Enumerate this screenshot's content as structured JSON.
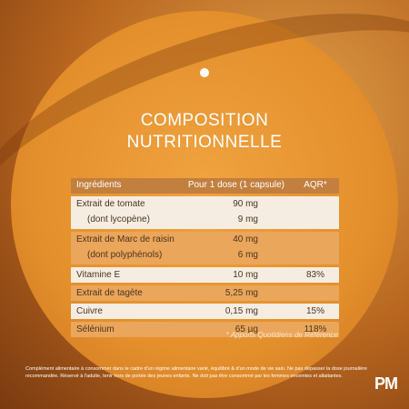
{
  "title": [
    "COMPOSITION",
    "NUTRITIONNELLE"
  ],
  "table": {
    "header": [
      "Ingrédients",
      "Pour 1 dose (1 capsule)",
      "AQR*"
    ],
    "groups": [
      {
        "lines": [
          {
            "name": "Extrait de tomate",
            "dose": "90 mg"
          },
          {
            "name": "(dont lycopène)",
            "dose": "9 mg"
          }
        ]
      },
      {
        "lines": [
          {
            "name": "Extrait de Marc de raisin",
            "dose": "40 mg"
          },
          {
            "name": "(dont polyphénols)",
            "dose": "6 mg"
          }
        ]
      },
      {
        "lines": [
          {
            "name": "Vitamine E",
            "dose": "10 mg",
            "aqr": "83%"
          }
        ]
      },
      {
        "lines": [
          {
            "name": "Extrait de tagète",
            "dose": "5,25 mg"
          }
        ]
      },
      {
        "lines": [
          {
            "name": "Cuivre",
            "dose": "0,15 mg",
            "aqr": "15%"
          }
        ]
      },
      {
        "lines": [
          {
            "name": "Sélénium",
            "dose": "65 µg",
            "aqr": "118%"
          }
        ]
      }
    ]
  },
  "footnote": "* Apports Quotidiens de Référence",
  "disclaimer": "Complément alimentaire à consommer dans le cadre d'un régime alimentaire varié, équilibré & d'un mode de vie sain. Ne pas dépasser la dose journalière recommandée. Réservé à l'adulte, tenir hors de portée des jeunes enfants. Ne doit pas être consommé par les femmes enceintes et allaitantes.",
  "logo": "PM"
}
